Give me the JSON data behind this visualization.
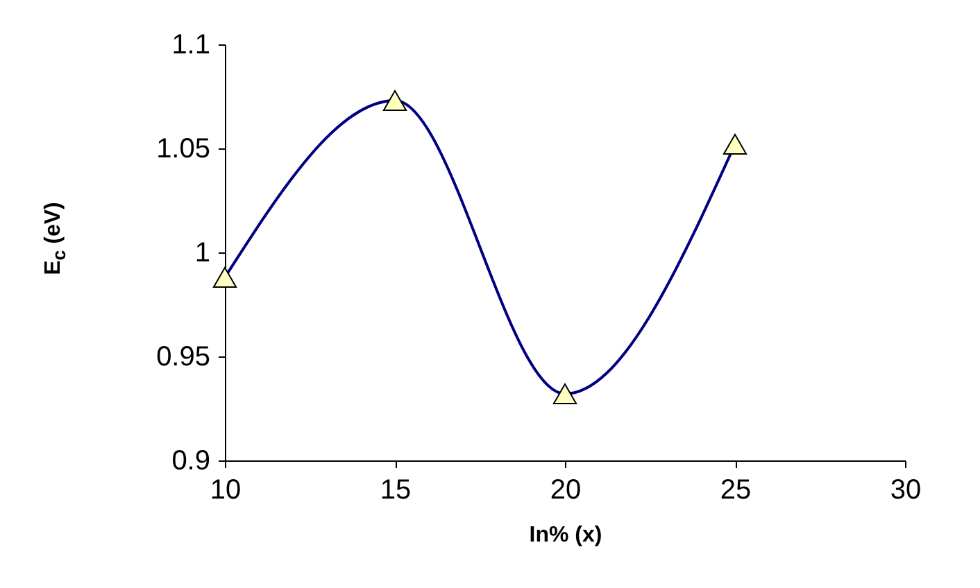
{
  "chart_data": {
    "type": "line",
    "xlabel": "In% (x)",
    "ylabel": "E$_{c}$ (eV)",
    "series": [
      {
        "color": "#000080",
        "x": [
          10,
          15,
          20,
          25
        ],
        "values": [
          0.988,
          1.073,
          0.932,
          1.052
        ]
      }
    ],
    "xlim": [
      10,
      30
    ],
    "xticks": [
      10,
      15,
      20,
      25,
      30
    ],
    "ylim": [
      0.9,
      1.1
    ],
    "yticks": [
      0.9,
      0.95,
      1,
      1.05,
      1.1
    ],
    "marker": "triangle",
    "line_style": "solid"
  }
}
